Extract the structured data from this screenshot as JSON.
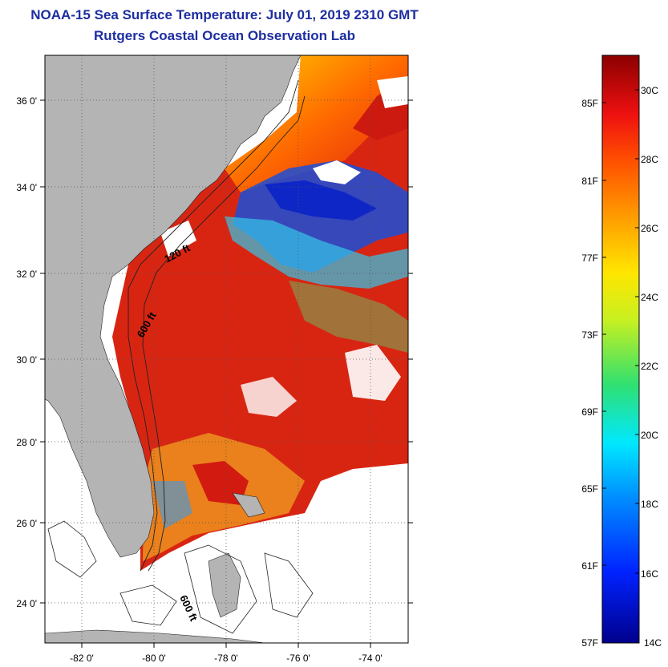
{
  "title": {
    "line1": "NOAA-15 Sea Surface Temperature:  July 01, 2019 2310 GMT",
    "line2": "Rutgers Coastal Ocean Observation Lab"
  },
  "map": {
    "lat_labels": [
      "36 0'",
      "34 0'",
      "32 0'",
      "30 0'",
      "28 0'",
      "26 0'",
      "24 0'"
    ],
    "lon_labels": [
      "-82 0'",
      "-80 0'",
      "-78 0'",
      "-76 0'",
      "-74 0'"
    ],
    "contour_labels": [
      "120 ft",
      "600 ft",
      "600 ft"
    ],
    "land_color": "#b4b4b4"
  },
  "colorbar": {
    "f_labels": [
      "85F",
      "81F",
      "77F",
      "73F",
      "69F",
      "65F",
      "61F",
      "57F"
    ],
    "c_labels": [
      "30C",
      "28C",
      "26C",
      "24C",
      "22C",
      "20C",
      "18C",
      "16C",
      "14C"
    ],
    "min_color": "#00008b",
    "max_color": "#8b0000"
  }
}
